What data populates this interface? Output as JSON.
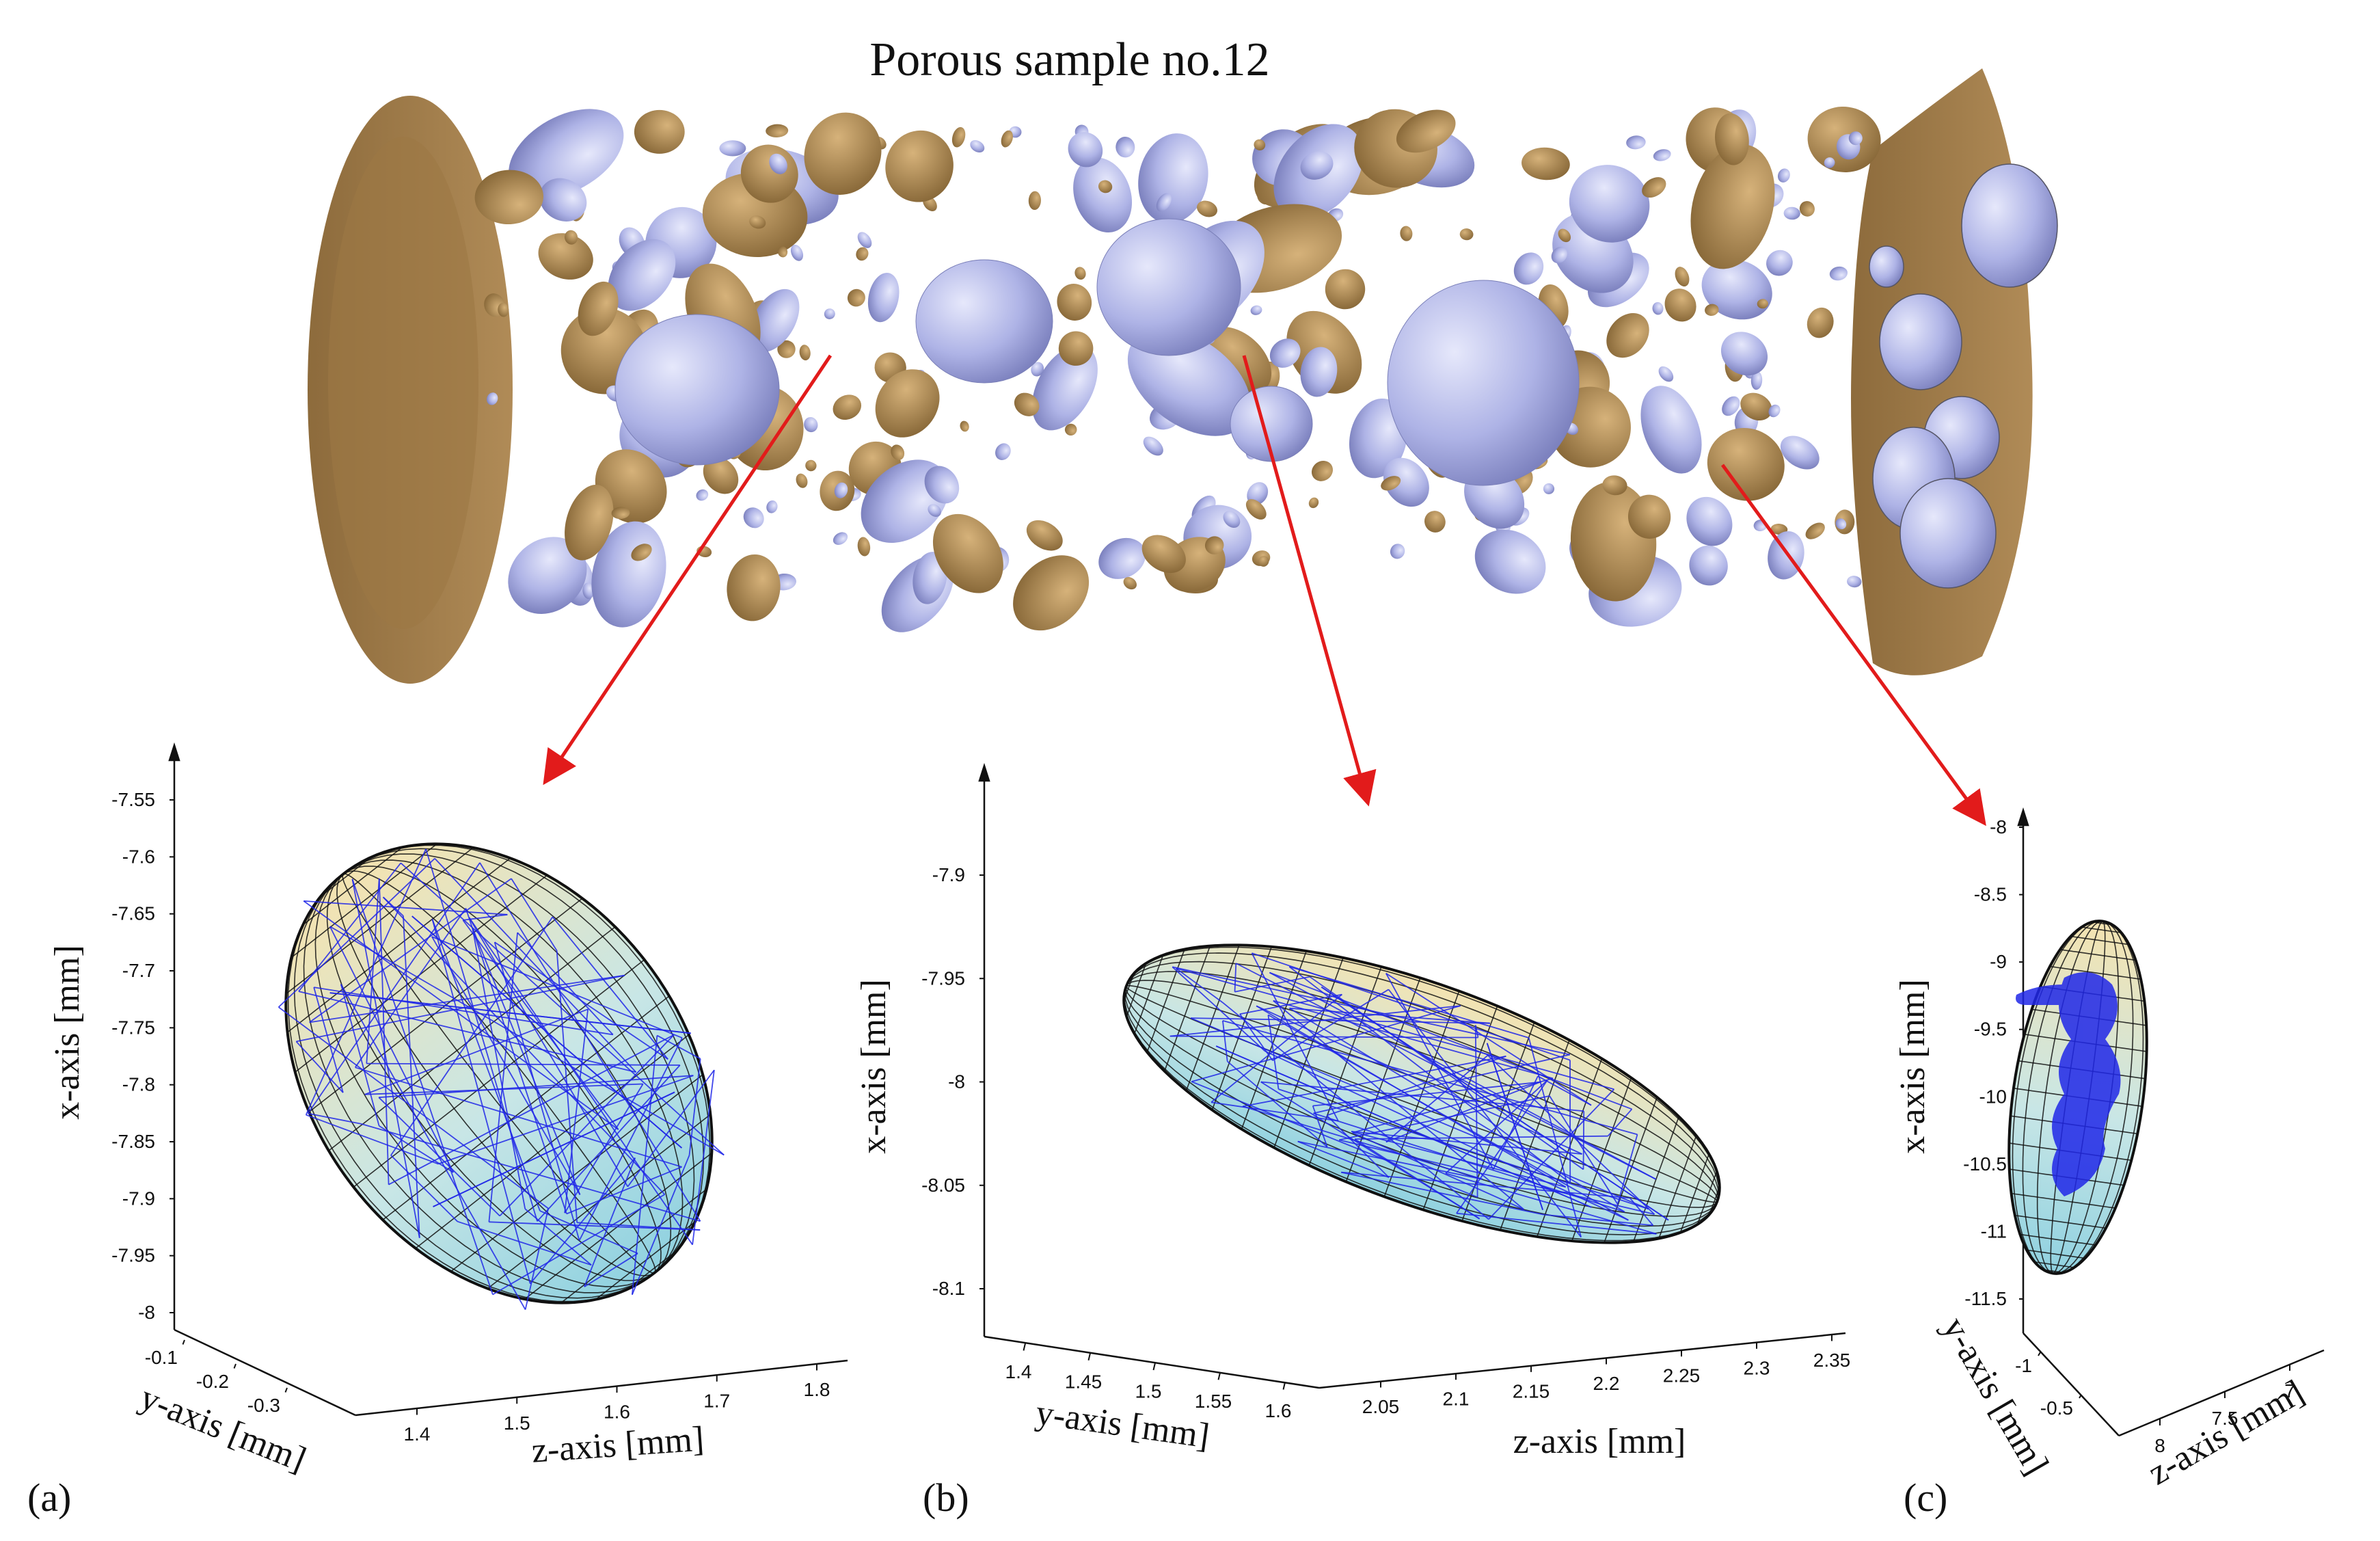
{
  "title": "Porous sample no.12",
  "colors": {
    "surface": "#a98451",
    "surface_dark": "#7e5f35",
    "ellipsoid": "#aeb3e6",
    "arrow": "#e21b1b",
    "mesh_blue": "#2027e8",
    "mesh_black": "#111111"
  },
  "panels": [
    {
      "label": "(a)",
      "x_axis_label": "x-axis [mm]",
      "y_axis_label": "y-axis [mm]",
      "z_axis_label": "z-axis [mm]",
      "x_ticks": [
        "-7.55",
        "-7.6",
        "-7.65",
        "-7.7",
        "-7.75",
        "-7.8",
        "-7.85",
        "-7.9",
        "-7.95",
        "-8"
      ],
      "y_ticks": [
        "-0.1",
        "-0.2",
        "-0.3"
      ],
      "z_ticks": [
        "1.4",
        "1.5",
        "1.6",
        "1.7",
        "1.8"
      ]
    },
    {
      "label": "(b)",
      "x_axis_label": "x-axis [mm]",
      "y_axis_label": "y-axis [mm]",
      "z_axis_label": "z-axis [mm]",
      "x_ticks": [
        "-7.9",
        "-7.95",
        "-8",
        "-8.05",
        "-8.1"
      ],
      "y_ticks": [
        "1.4",
        "1.45",
        "1.5",
        "1.55",
        "1.6"
      ],
      "z_ticks": [
        "2.05",
        "2.1",
        "2.15",
        "2.2",
        "2.25",
        "2.3",
        "2.35"
      ]
    },
    {
      "label": "(c)",
      "x_axis_label": "x-axis [mm]",
      "y_axis_label": "y-axis [mm]",
      "z_axis_label": "z-axis [mm]",
      "x_ticks": [
        "-8",
        "-8.5",
        "-9",
        "-9.5",
        "-10",
        "-10.5",
        "-11",
        "-11.5"
      ],
      "y_ticks": [
        "-1",
        "-0.5"
      ],
      "z_ticks": [
        "8",
        "7.5",
        "7"
      ]
    }
  ]
}
